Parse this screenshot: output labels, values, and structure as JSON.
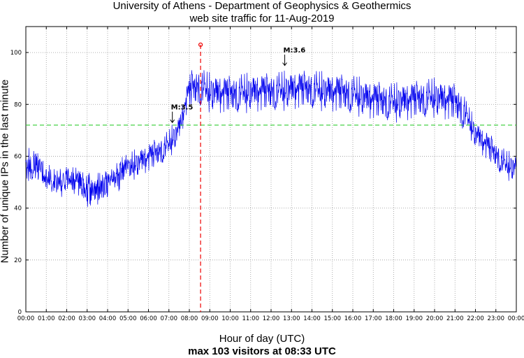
{
  "chart_data": {
    "type": "line",
    "title": "University of Athens - Department of Geophysics & Geothermics",
    "subtitle": "web site traffic for 11-Aug-2019",
    "xlabel": "Hour of day (UTC)",
    "footer": "max 103 visitors at 08:33 UTC",
    "ylabel": "Number of unique IPs in the last minute",
    "xlim": [
      0,
      24
    ],
    "ylim": [
      0,
      110
    ],
    "grid": true,
    "x_tick_labels": [
      "00:00",
      "01:00",
      "02:00",
      "03:00",
      "04:00",
      "05:00",
      "06:00",
      "07:00",
      "08:00",
      "09:00",
      "10:00",
      "11:00",
      "12:00",
      "13:00",
      "14:00",
      "15:00",
      "16:00",
      "17:00",
      "18:00",
      "19:00",
      "20:00",
      "21:00",
      "22:00",
      "23:00",
      "00:00"
    ],
    "y_ticks": [
      0,
      20,
      40,
      60,
      80,
      100
    ],
    "series": [
      {
        "color": "#0000ee",
        "hourly_profile": [
          {
            "x": 0.0,
            "y": 57
          },
          {
            "x": 0.5,
            "y": 56
          },
          {
            "x": 1.0,
            "y": 53
          },
          {
            "x": 1.5,
            "y": 50
          },
          {
            "x": 2.0,
            "y": 50
          },
          {
            "x": 2.5,
            "y": 50
          },
          {
            "x": 3.0,
            "y": 47
          },
          {
            "x": 3.5,
            "y": 47
          },
          {
            "x": 4.0,
            "y": 49
          },
          {
            "x": 4.5,
            "y": 52
          },
          {
            "x": 5.0,
            "y": 55
          },
          {
            "x": 5.5,
            "y": 57
          },
          {
            "x": 6.0,
            "y": 59
          },
          {
            "x": 6.5,
            "y": 61
          },
          {
            "x": 7.0,
            "y": 64
          },
          {
            "x": 7.5,
            "y": 70
          },
          {
            "x": 8.0,
            "y": 85
          },
          {
            "x": 8.5,
            "y": 86
          },
          {
            "x": 9.0,
            "y": 84
          },
          {
            "x": 10.0,
            "y": 83
          },
          {
            "x": 11.0,
            "y": 84
          },
          {
            "x": 12.0,
            "y": 84
          },
          {
            "x": 13.0,
            "y": 85
          },
          {
            "x": 14.0,
            "y": 85
          },
          {
            "x": 15.0,
            "y": 84
          },
          {
            "x": 16.0,
            "y": 83
          },
          {
            "x": 17.0,
            "y": 81
          },
          {
            "x": 18.0,
            "y": 80
          },
          {
            "x": 19.0,
            "y": 81
          },
          {
            "x": 20.0,
            "y": 82
          },
          {
            "x": 21.0,
            "y": 80
          },
          {
            "x": 21.5,
            "y": 76
          },
          {
            "x": 22.0,
            "y": 68
          },
          {
            "x": 22.5,
            "y": 64
          },
          {
            "x": 23.0,
            "y": 60
          },
          {
            "x": 23.5,
            "y": 56
          },
          {
            "x": 24.0,
            "y": 55
          }
        ]
      }
    ],
    "mean_line": {
      "y": 72,
      "color": "#33cc33"
    },
    "max_marker": {
      "x": 8.55,
      "y": 103,
      "color": "#ee0000"
    },
    "annotations": [
      {
        "text": "M:3.5",
        "x": 7.1,
        "y_text": 78,
        "y_arrow": 73
      },
      {
        "text": "M:3.6",
        "x": 12.6,
        "y_text": 100,
        "y_arrow": 95
      }
    ]
  }
}
